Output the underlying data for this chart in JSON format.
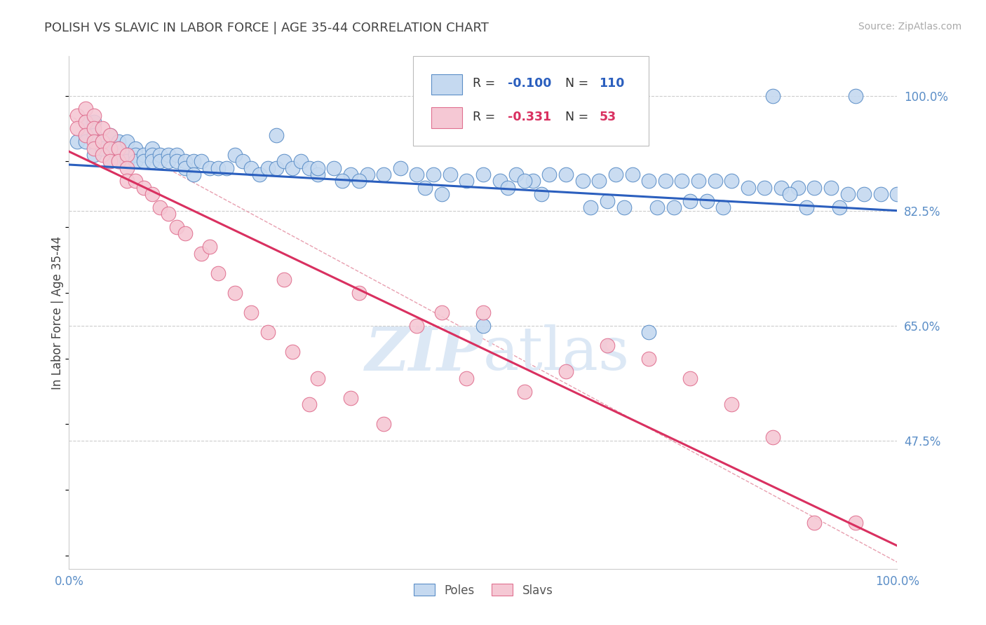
{
  "title": "POLISH VS SLAVIC IN LABOR FORCE | AGE 35-44 CORRELATION CHART",
  "source_text": "Source: ZipAtlas.com",
  "ylabel": "In Labor Force | Age 35-44",
  "xlim": [
    0.0,
    1.0
  ],
  "ylim": [
    0.28,
    1.06
  ],
  "yticks": [
    0.475,
    0.65,
    0.825,
    1.0
  ],
  "ytick_labels": [
    "47.5%",
    "65.0%",
    "82.5%",
    "100.0%"
  ],
  "poles_color": "#c5d9f0",
  "poles_edge_color": "#5b8ec7",
  "slavs_color": "#f5c8d4",
  "slavs_edge_color": "#e07090",
  "trend_poles_color": "#2b5fbe",
  "trend_slavs_color": "#d93060",
  "diag_color": "#e8a0b0",
  "background_color": "#ffffff",
  "grid_color": "#cccccc",
  "title_color": "#444444",
  "axis_color": "#5b8ec7",
  "watermark_color": "#dce8f5",
  "poles_trend_start_y": 0.895,
  "poles_trend_end_y": 0.825,
  "slavs_trend_start_y": 0.915,
  "slavs_trend_end_y": 0.315,
  "poles_x": [
    0.01,
    0.02,
    0.02,
    0.02,
    0.03,
    0.03,
    0.03,
    0.04,
    0.04,
    0.05,
    0.05,
    0.05,
    0.06,
    0.06,
    0.06,
    0.07,
    0.07,
    0.07,
    0.08,
    0.08,
    0.08,
    0.09,
    0.09,
    0.1,
    0.1,
    0.1,
    0.11,
    0.11,
    0.12,
    0.12,
    0.13,
    0.13,
    0.14,
    0.14,
    0.15,
    0.16,
    0.17,
    0.18,
    0.19,
    0.2,
    0.21,
    0.22,
    0.23,
    0.24,
    0.25,
    0.26,
    0.27,
    0.28,
    0.29,
    0.3,
    0.32,
    0.34,
    0.36,
    0.38,
    0.4,
    0.42,
    0.44,
    0.46,
    0.48,
    0.5,
    0.52,
    0.54,
    0.56,
    0.58,
    0.6,
    0.62,
    0.64,
    0.66,
    0.68,
    0.7,
    0.72,
    0.74,
    0.76,
    0.78,
    0.8,
    0.82,
    0.84,
    0.86,
    0.88,
    0.9,
    0.92,
    0.94,
    0.96,
    0.98,
    1.0,
    0.5,
    0.7,
    0.85,
    0.95,
    0.73,
    0.33,
    0.25,
    0.45,
    0.55,
    0.65,
    0.75,
    0.15,
    0.35,
    0.53,
    0.67,
    0.77,
    0.87,
    0.93,
    0.3,
    0.43,
    0.57,
    0.63,
    0.71,
    0.79,
    0.89
  ],
  "poles_y": [
    0.93,
    0.96,
    0.94,
    0.93,
    0.96,
    0.94,
    0.91,
    0.93,
    0.92,
    0.94,
    0.92,
    0.9,
    0.93,
    0.92,
    0.9,
    0.93,
    0.91,
    0.9,
    0.92,
    0.91,
    0.9,
    0.91,
    0.9,
    0.92,
    0.91,
    0.9,
    0.91,
    0.9,
    0.91,
    0.9,
    0.91,
    0.9,
    0.9,
    0.89,
    0.9,
    0.9,
    0.89,
    0.89,
    0.89,
    0.91,
    0.9,
    0.89,
    0.88,
    0.89,
    0.89,
    0.9,
    0.89,
    0.9,
    0.89,
    0.88,
    0.89,
    0.88,
    0.88,
    0.88,
    0.89,
    0.88,
    0.88,
    0.88,
    0.87,
    0.88,
    0.87,
    0.88,
    0.87,
    0.88,
    0.88,
    0.87,
    0.87,
    0.88,
    0.88,
    0.87,
    0.87,
    0.87,
    0.87,
    0.87,
    0.87,
    0.86,
    0.86,
    0.86,
    0.86,
    0.86,
    0.86,
    0.85,
    0.85,
    0.85,
    0.85,
    0.65,
    0.64,
    1.0,
    1.0,
    0.83,
    0.87,
    0.94,
    0.85,
    0.87,
    0.84,
    0.84,
    0.88,
    0.87,
    0.86,
    0.83,
    0.84,
    0.85,
    0.83,
    0.89,
    0.86,
    0.85,
    0.83,
    0.83,
    0.83,
    0.83
  ],
  "slavs_x": [
    0.01,
    0.01,
    0.02,
    0.02,
    0.02,
    0.03,
    0.03,
    0.03,
    0.03,
    0.04,
    0.04,
    0.04,
    0.05,
    0.05,
    0.05,
    0.06,
    0.06,
    0.07,
    0.07,
    0.07,
    0.08,
    0.09,
    0.1,
    0.11,
    0.12,
    0.13,
    0.14,
    0.16,
    0.18,
    0.2,
    0.22,
    0.24,
    0.27,
    0.3,
    0.34,
    0.38,
    0.42,
    0.45,
    0.5,
    0.55,
    0.6,
    0.65,
    0.7,
    0.75,
    0.8,
    0.85,
    0.9,
    0.95,
    0.17,
    0.35,
    0.26,
    0.48,
    0.29
  ],
  "slavs_y": [
    0.97,
    0.95,
    0.98,
    0.96,
    0.94,
    0.97,
    0.95,
    0.93,
    0.92,
    0.95,
    0.93,
    0.91,
    0.94,
    0.92,
    0.9,
    0.92,
    0.9,
    0.91,
    0.89,
    0.87,
    0.87,
    0.86,
    0.85,
    0.83,
    0.82,
    0.8,
    0.79,
    0.76,
    0.73,
    0.7,
    0.67,
    0.64,
    0.61,
    0.57,
    0.54,
    0.5,
    0.65,
    0.67,
    0.67,
    0.55,
    0.58,
    0.62,
    0.6,
    0.57,
    0.53,
    0.48,
    0.35,
    0.35,
    0.77,
    0.7,
    0.72,
    0.57,
    0.53
  ]
}
